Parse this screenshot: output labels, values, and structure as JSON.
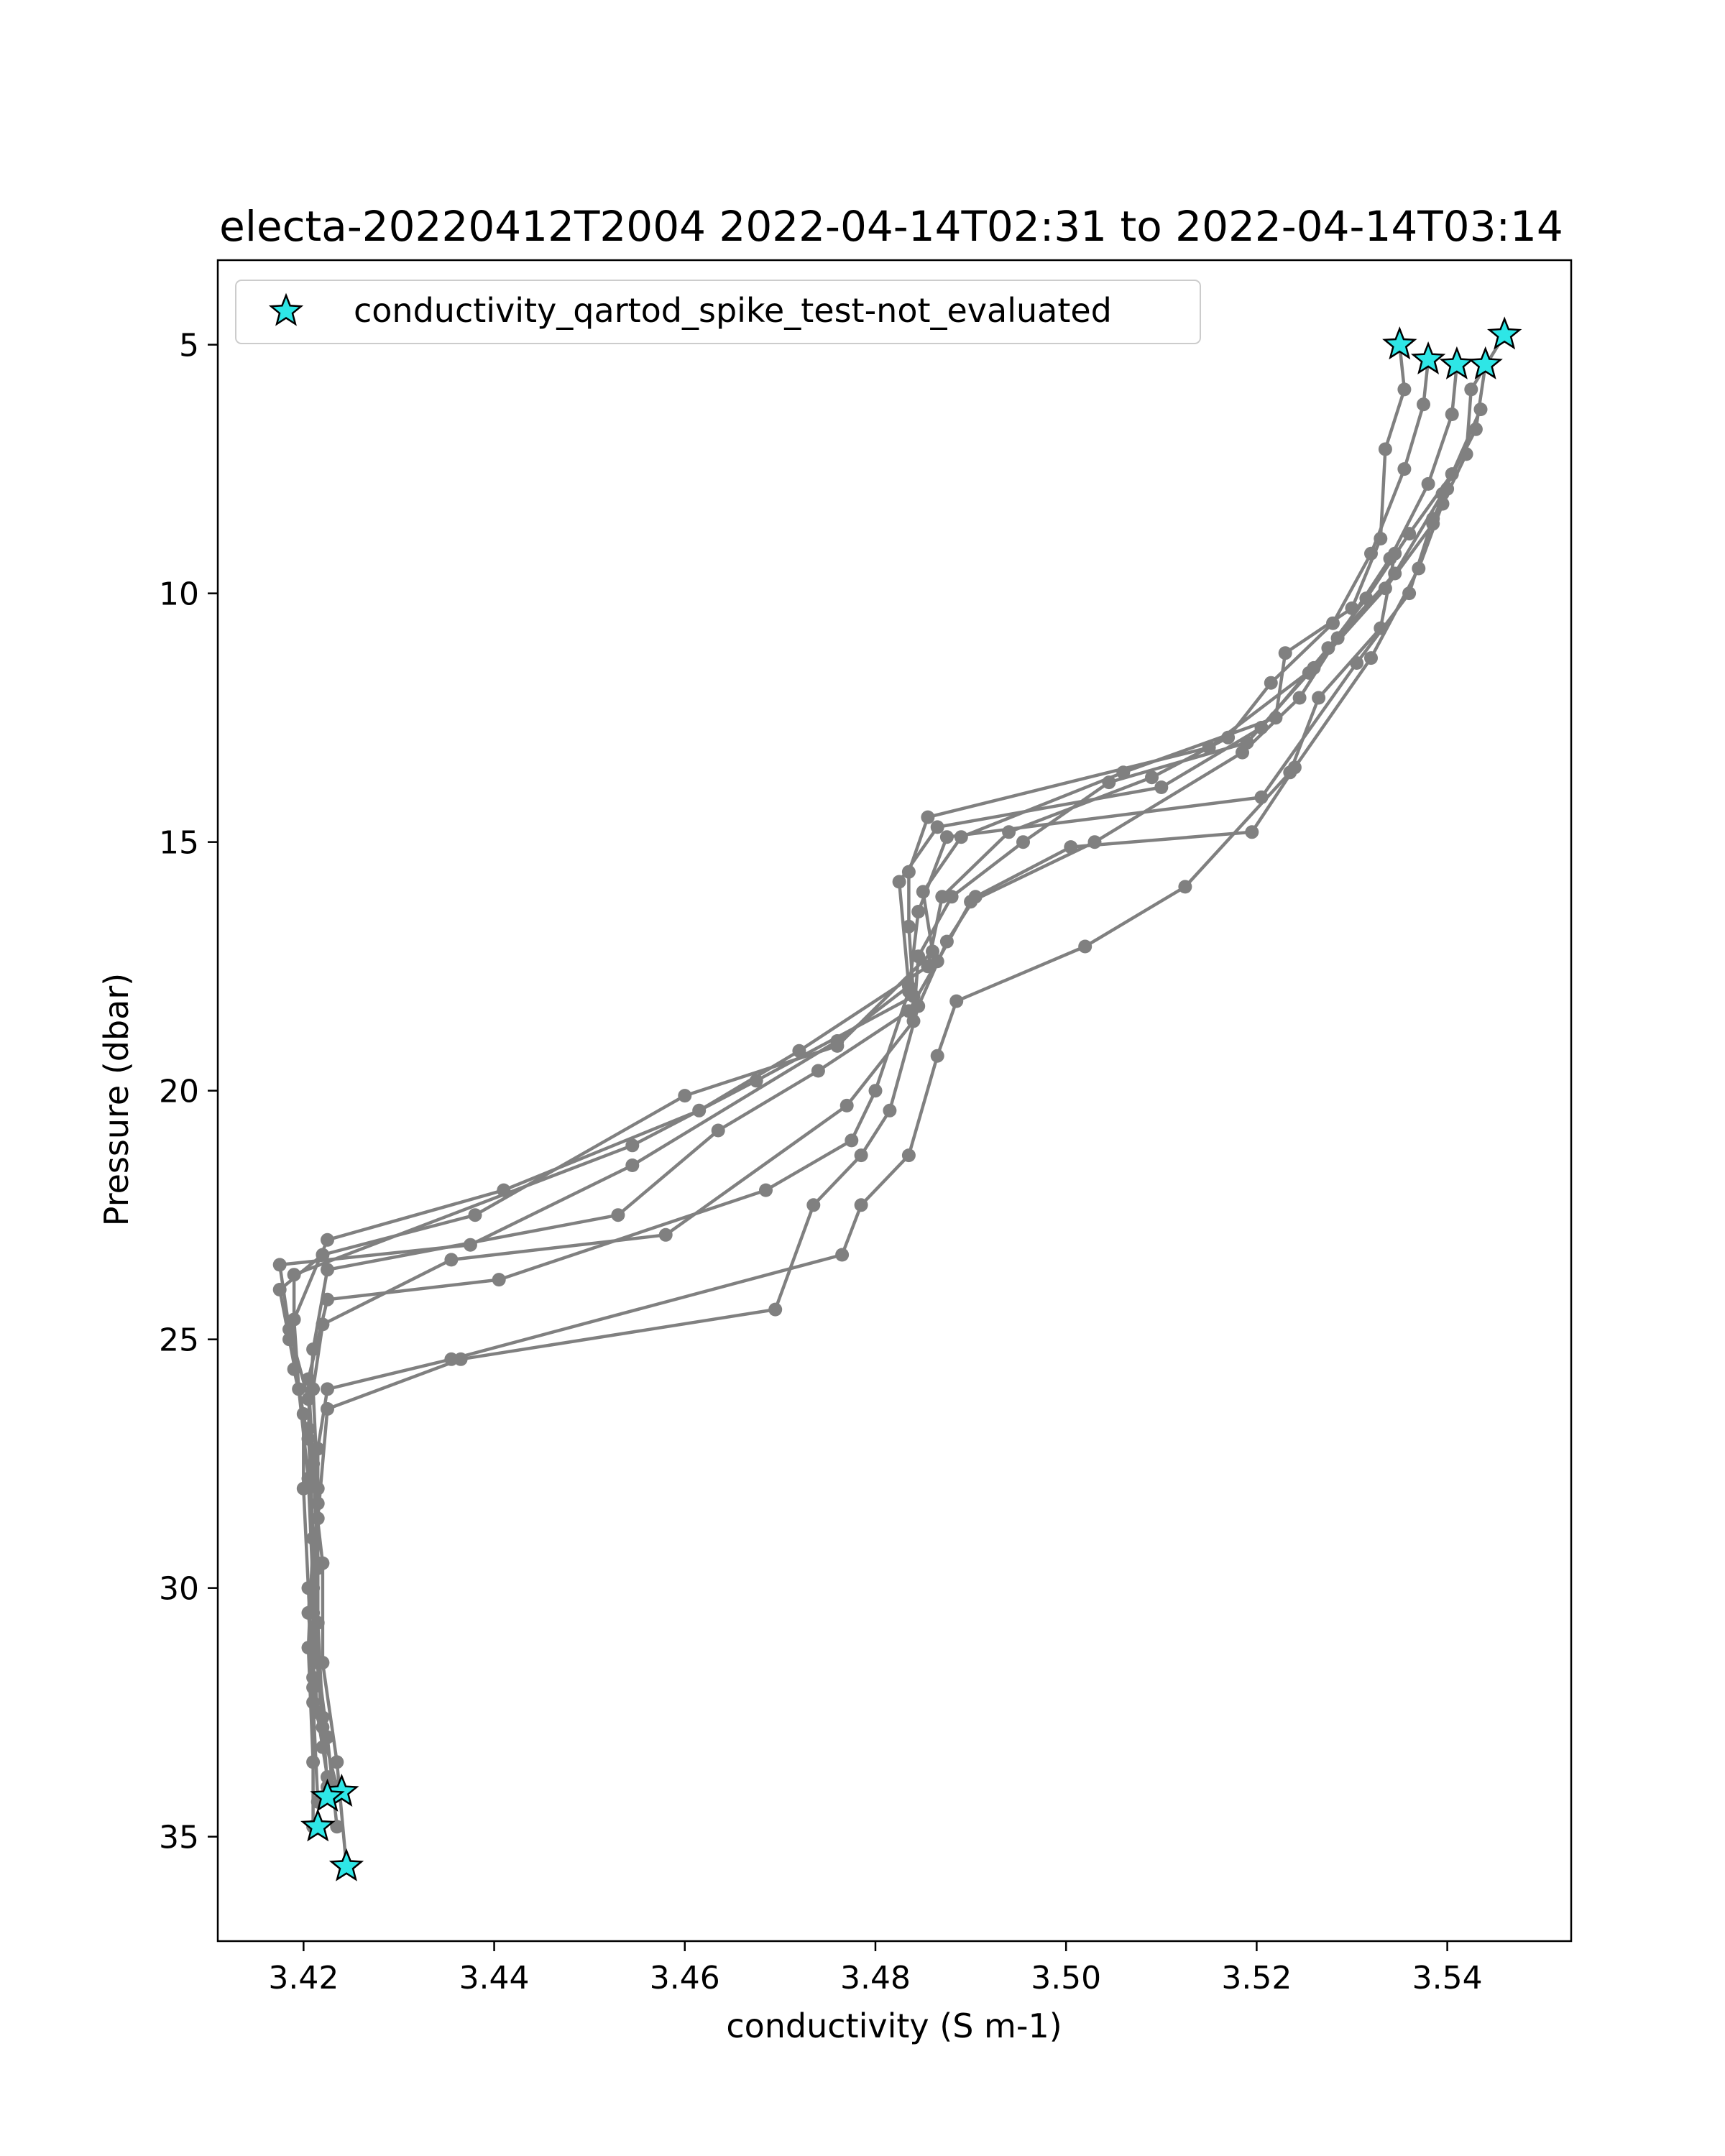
{
  "chart_data": {
    "type": "line",
    "title": "electa-20220412T2004 2022-04-14T02:31 to 2022-04-14T03:14",
    "xlabel": "conductivity (S m-1)",
    "ylabel": "Pressure (dbar)",
    "xlim": [
      3.411,
      3.553
    ],
    "ylim": [
      37.1,
      3.3
    ],
    "y_inverted": true,
    "x_ticks": [
      3.42,
      3.44,
      3.46,
      3.48,
      3.5,
      3.52,
      3.54
    ],
    "x_tick_labels": [
      "3.42",
      "3.44",
      "3.46",
      "3.48",
      "3.50",
      "3.52",
      "3.54"
    ],
    "y_ticks": [
      5,
      10,
      15,
      20,
      25,
      30,
      35
    ],
    "y_tick_labels": [
      "5",
      "10",
      "15",
      "20",
      "25",
      "30",
      "35"
    ],
    "grid": false,
    "legend": {
      "position": "top-left",
      "entries": [
        "conductivity_qartod_spike_test-not_evaluated"
      ]
    },
    "colors": {
      "profile_line": "#808080",
      "flag_marker": "#2ee6e6",
      "flag_edge": "#000000"
    },
    "series": [
      {
        "points": [
          [
            3.535,
            5.0
          ],
          [
            3.5355,
            5.9
          ],
          [
            3.5335,
            7.1
          ],
          [
            3.533,
            8.9
          ],
          [
            3.53,
            10.3
          ],
          [
            3.523,
            11.2
          ],
          [
            3.522,
            12.5
          ],
          [
            3.506,
            13.6
          ],
          [
            3.489,
            14.9
          ],
          [
            3.485,
            16.0
          ],
          [
            3.486,
            17.2
          ],
          [
            3.476,
            19.1
          ],
          [
            3.46,
            20.1
          ],
          [
            3.438,
            22.5
          ],
          [
            3.422,
            23.3
          ],
          [
            3.4175,
            24.0
          ],
          [
            3.4185,
            25.0
          ],
          [
            3.42,
            26.5
          ],
          [
            3.42,
            28.0
          ],
          [
            3.4205,
            30.0
          ],
          [
            3.421,
            32.0
          ],
          [
            3.4225,
            33.8
          ],
          [
            3.424,
            34.1
          ]
        ]
      },
      {
        "points": [
          [
            3.538,
            5.3
          ],
          [
            3.5375,
            6.2
          ],
          [
            3.5355,
            7.5
          ],
          [
            3.532,
            9.2
          ],
          [
            3.528,
            10.6
          ],
          [
            3.5215,
            11.8
          ],
          [
            3.517,
            12.9
          ],
          [
            3.509,
            13.7
          ],
          [
            3.494,
            14.8
          ],
          [
            3.487,
            16.1
          ],
          [
            3.4855,
            17.5
          ],
          [
            3.472,
            19.2
          ],
          [
            3.4615,
            20.4
          ],
          [
            3.441,
            22.0
          ],
          [
            3.4225,
            23.0
          ],
          [
            3.419,
            24.6
          ],
          [
            3.4195,
            26.0
          ],
          [
            3.4205,
            27.8
          ],
          [
            3.421,
            30.0
          ],
          [
            3.421,
            32.3
          ],
          [
            3.4215,
            34.3
          ]
        ]
      },
      {
        "points": [
          [
            3.541,
            5.4
          ],
          [
            3.5405,
            6.4
          ],
          [
            3.538,
            7.8
          ],
          [
            3.534,
            9.3
          ],
          [
            3.5285,
            10.9
          ],
          [
            3.5245,
            12.1
          ],
          [
            3.5185,
            13.2
          ],
          [
            3.503,
            15.0
          ],
          [
            3.49,
            16.2
          ],
          [
            3.4865,
            17.4
          ],
          [
            3.4835,
            18.4
          ],
          [
            3.474,
            19.6
          ],
          [
            3.4635,
            20.8
          ],
          [
            3.453,
            22.5
          ],
          [
            3.4225,
            23.6
          ],
          [
            3.421,
            25.2
          ],
          [
            3.4205,
            26.8
          ],
          [
            3.421,
            29.0
          ],
          [
            3.4205,
            31.2
          ],
          [
            3.421,
            33.5
          ],
          [
            3.421,
            34.8
          ]
        ]
      },
      {
        "points": [
          [
            3.546,
            4.8
          ],
          [
            3.5425,
            5.9
          ],
          [
            3.542,
            7.2
          ],
          [
            3.5385,
            8.6
          ],
          [
            3.5335,
            9.9
          ],
          [
            3.526,
            11.5
          ],
          [
            3.515,
            13.1
          ],
          [
            3.4855,
            14.5
          ],
          [
            3.4835,
            15.6
          ],
          [
            3.4835,
            16.7
          ],
          [
            3.484,
            18.1
          ],
          [
            3.4675,
            19.8
          ],
          [
            3.4545,
            21.1
          ],
          [
            3.419,
            23.7
          ],
          [
            3.419,
            25.6
          ],
          [
            3.4205,
            27.0
          ],
          [
            3.422,
            29.5
          ],
          [
            3.422,
            31.5
          ],
          [
            3.4235,
            33.5
          ],
          [
            3.4245,
            35.6
          ]
        ]
      },
      {
        "points": [
          [
            3.544,
            5.4
          ],
          [
            3.543,
            6.7
          ],
          [
            3.5395,
            8.0
          ],
          [
            3.5345,
            9.6
          ],
          [
            3.5275,
            11.1
          ],
          [
            3.5205,
            12.7
          ],
          [
            3.51,
            13.9
          ],
          [
            3.4865,
            14.7
          ],
          [
            3.4825,
            15.8
          ],
          [
            3.4835,
            17.9
          ],
          [
            3.476,
            19.0
          ],
          [
            3.4545,
            21.5
          ],
          [
            3.4375,
            23.1
          ],
          [
            3.4175,
            23.5
          ],
          [
            3.4185,
            24.8
          ],
          [
            3.4205,
            26.2
          ],
          [
            3.4215,
            28.3
          ],
          [
            3.4205,
            30.5
          ],
          [
            3.4215,
            32.5
          ],
          [
            3.4235,
            34.0
          ]
        ]
      },
      {
        "points": [
          [
            3.5435,
            6.3
          ],
          [
            3.5405,
            7.6
          ],
          [
            3.536,
            8.8
          ],
          [
            3.5315,
            10.1
          ],
          [
            3.5255,
            11.6
          ],
          [
            3.519,
            13.0
          ],
          [
            3.5045,
            13.8
          ],
          [
            3.4955,
            15.0
          ],
          [
            3.488,
            16.1
          ],
          [
            3.4845,
            17.3
          ],
          [
            3.484,
            18.6
          ],
          [
            3.477,
            20.3
          ],
          [
            3.458,
            22.9
          ],
          [
            3.4355,
            23.4
          ],
          [
            3.422,
            24.7
          ],
          [
            3.421,
            26.0
          ],
          [
            3.4215,
            28.0
          ],
          [
            3.421,
            30.5
          ],
          [
            3.422,
            32.8
          ]
        ]
      },
      {
        "points": [
          [
            3.54,
            7.9
          ],
          [
            3.5385,
            8.5
          ],
          [
            3.536,
            10.0
          ],
          [
            3.5305,
            11.4
          ],
          [
            3.5205,
            14.1
          ],
          [
            3.4875,
            14.9
          ],
          [
            3.4845,
            16.4
          ],
          [
            3.4835,
            18.0
          ],
          [
            3.48,
            20.0
          ],
          [
            3.4775,
            21.0
          ],
          [
            3.4685,
            22.0
          ],
          [
            3.4405,
            23.8
          ],
          [
            3.4225,
            24.2
          ],
          [
            3.4205,
            25.8
          ],
          [
            3.421,
            27.5
          ],
          [
            3.4215,
            29.5
          ],
          [
            3.421,
            31.8
          ],
          [
            3.422,
            33.2
          ]
        ]
      },
      {
        "points": [
          [
            3.5395,
            8.2
          ],
          [
            3.537,
            9.5
          ],
          [
            3.532,
            11.3
          ],
          [
            3.524,
            13.5
          ],
          [
            3.5195,
            14.8
          ],
          [
            3.5005,
            15.1
          ],
          [
            3.4905,
            16.1
          ],
          [
            3.4875,
            17.0
          ],
          [
            3.4845,
            18.3
          ],
          [
            3.4815,
            20.4
          ],
          [
            3.4785,
            21.3
          ],
          [
            3.4735,
            22.3
          ],
          [
            3.4695,
            24.4
          ],
          [
            3.4365,
            25.4
          ],
          [
            3.4225,
            26.4
          ],
          [
            3.4215,
            28.6
          ],
          [
            3.4215,
            30.7
          ],
          [
            3.422,
            32.6
          ],
          [
            3.4225,
            34.0
          ]
        ]
      },
      {
        "points": [
          [
            3.5345,
            9.2
          ],
          [
            3.533,
            10.7
          ],
          [
            3.5265,
            12.1
          ],
          [
            3.5235,
            13.6
          ],
          [
            3.5125,
            15.9
          ],
          [
            3.502,
            17.1
          ],
          [
            3.4885,
            18.2
          ],
          [
            3.4865,
            19.3
          ],
          [
            3.4835,
            21.3
          ],
          [
            3.4785,
            22.3
          ],
          [
            3.4765,
            23.3
          ],
          [
            3.4355,
            25.4
          ],
          [
            3.4225,
            26.0
          ],
          [
            3.4215,
            27.2
          ],
          [
            3.4215,
            29.6
          ],
          [
            3.4215,
            31.5
          ],
          [
            3.4225,
            33.0
          ],
          [
            3.4235,
            34.8
          ]
        ]
      }
    ],
    "flagged": [
      [
        3.535,
        5.0
      ],
      [
        3.538,
        5.3
      ],
      [
        3.541,
        5.4
      ],
      [
        3.544,
        5.4
      ],
      [
        3.546,
        4.8
      ],
      [
        3.424,
        34.1
      ],
      [
        3.4225,
        34.2
      ],
      [
        3.4215,
        34.8
      ],
      [
        3.4245,
        35.6
      ]
    ]
  }
}
